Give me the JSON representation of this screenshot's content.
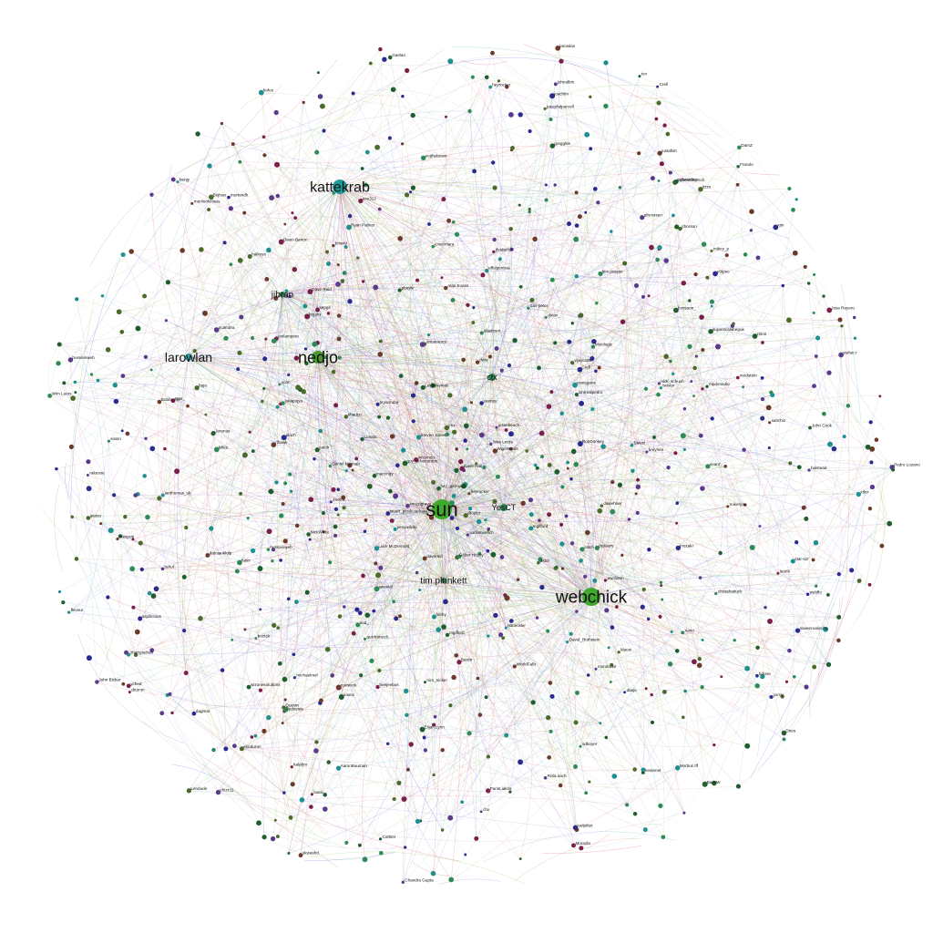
{
  "figure": {
    "background": "#ffffff",
    "edge_colors": [
      "#6fbf3f",
      "#4aa8c8",
      "#a64ac9",
      "#3f4fd0",
      "#c97a3a",
      "#c93a5a",
      "#7a9a3a"
    ],
    "node_colors": [
      "#2e8b57",
      "#1f8f8f",
      "#2b2b8f",
      "#6b3a2a",
      "#4b6b2a",
      "#7a1f4a",
      "#1f5f2f",
      "#5a3a8a"
    ]
  },
  "graph": {
    "hubs": [
      {
        "id": "sun",
        "label": "sun",
        "color": "#3fa92e",
        "degree_rank": 1
      },
      {
        "id": "webchick",
        "label": "webchick",
        "color": "#3fa92e",
        "degree_rank": 2
      },
      {
        "id": "kattekrab",
        "label": "kattekrab",
        "color": "#1f9a9a",
        "degree_rank": 3
      },
      {
        "id": "nedjo",
        "label": "nedjo",
        "color": "#4a9a2e",
        "degree_rank": 4
      },
      {
        "id": "larowlan",
        "label": "larowlan",
        "color": "#2aa4a4",
        "degree_rank": 5
      },
      {
        "id": "tim.plunkett",
        "label": "tim.plunkett",
        "color": "#2e7a4a",
        "degree_rank": 6
      },
      {
        "id": "jibran",
        "label": "jibran",
        "color": "#2e7a4a",
        "degree_rank": 7
      },
      {
        "id": "ctx",
        "label": "ctx",
        "color": "#2e8b57",
        "degree_rank": 8
      },
      {
        "id": "YesCT",
        "label": "YesCT",
        "color": "#2e8b57",
        "degree_rank": 9
      }
    ],
    "nodes": [
      "Owen Barton",
      "guy_schneerson",
      "niro_nicker",
      "husseinweb",
      "shadcn",
      "John Cook",
      "Morbus Iff",
      "Dave Reid",
      "catch",
      "Gábor Hojtsy",
      "effulgentsia",
      "Crell",
      "chx",
      "swentel",
      "Berdir",
      "alexpott",
      "xjm",
      "dawehner",
      "amateescu",
      "plach",
      "Wim Leers",
      "klausi",
      "larowlan",
      "dww",
      "greggles",
      "mikey_p",
      "davereid",
      "quicksketch",
      "merlinofchaos",
      "jhodgdon",
      "eaton",
      "Pedro Lozano",
      "heyrocker",
      "Bojhan",
      "yoroy",
      "LewisNyman",
      "mortendk",
      "lauriii",
      "Cottser",
      "joelpittet",
      "star-szr",
      "pwolanin",
      "damiankloip",
      "fago",
      "das-peter",
      "penyaskito",
      "Gaelan",
      "David_Rothstein",
      "bdone",
      "rootwork",
      "opdavies",
      "Crell",
      "hass",
      "Jose Reyero",
      "vijaycs85",
      "benjy",
      "mikeryan",
      "chx",
      "Dries",
      "drumm",
      "cweagans",
      "dixon_",
      "stefan.r",
      "hussainweb",
      "Mixologic",
      "jnozaki",
      "halstead",
      "stuart_prodevarkara",
      "chizz11",
      "kalabro",
      "sanchiz",
      "joachim",
      "pfrenssen",
      "BarisW",
      "RobDonkey",
      "Liam McDermott",
      "aspilicious",
      "webflo",
      "marcingy",
      "ericduran",
      "WigeWoole",
      "Bobby Hill",
      "AaronBauman",
      "flevour",
      "isntrealpedro",
      "mgifford",
      "tstoeckler",
      "Wim Leers",
      "Steven Jones",
      "superscalabeguk",
      "dagmar",
      "rlhawk",
      "smustgrave",
      "heddn",
      "johnalbin",
      "lokapujya",
      "vincenzo",
      "skwashd",
      "droplet",
      "rakesoe",
      "naveenvalecha",
      "Daniel Norman",
      "yched",
      "heyrocker",
      "mgifford",
      "WorldFallz",
      "zhangtaihao",
      "Dave Hall",
      "Chandra Gupta",
      "Quevin",
      "Lunatic",
      "eojthebrave",
      "zlimit",
      "juampy",
      "ianthomas_uk",
      "Alan Evans",
      "Elijah Lynn",
      "seanr",
      "bryanruby",
      "jpetso",
      "Frando",
      "chrisshattuck",
      "kim.pepper",
      "naxoc",
      "twistor",
      "Stevel",
      "sepgil",
      "brianV",
      "michaelmol",
      "Ryan Palmer",
      "fubhy",
      "pcambra",
      "nick_schuch",
      "Lendude",
      "bojanz",
      "borisson_",
      "dasjo",
      "jthorson",
      "e0ipso",
      "mpdonadio",
      "NickWilde",
      "pbuyle",
      "wizonesolutions",
      "jcnventura",
      "xtfer",
      "socketwench",
      "kreynen",
      "nerdstein",
      "hestenet",
      "tvn",
      "basic",
      "rahul",
      "hey_germano",
      "Cyberschorsch",
      "John Bickar",
      "acbramley",
      "nod_",
      "scor",
      "boztek",
      "jenlampton",
      "Psikik",
      "jessebeach",
      "DamZ",
      "ParisLiakos",
      "beejeebus",
      "killes",
      "sdboyer",
      "Xano",
      "znerol",
      "slashrsm",
      "Jerenus",
      "Moradin",
      "RobLoach",
      "dstol",
      "hefox",
      "catch",
      "tizzo",
      "halkeye",
      "josephdpurcell",
      "Noe_",
      "axe312",
      "tkoleary",
      "justafish",
      "mondrake"
    ]
  }
}
